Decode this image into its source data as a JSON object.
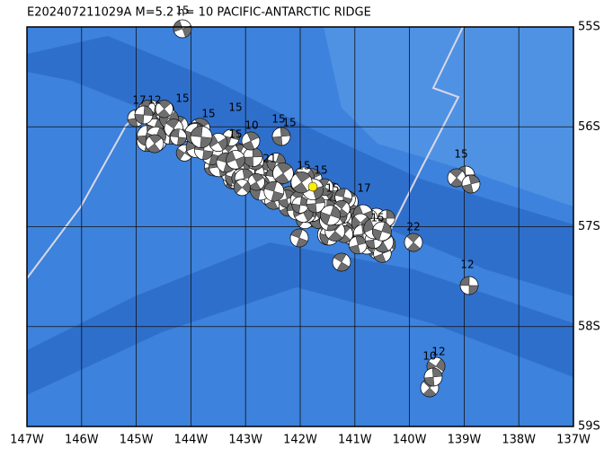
{
  "title": "E202407211029A M=5.2 h= 10 PACIFIC-ANTARCTIC RIDGE",
  "lon_labels": [
    "147W",
    "146W",
    "145W",
    "144W",
    "143W",
    "142W",
    "141W",
    "140W",
    "139W",
    "138W",
    "137W"
  ],
  "lat_labels": [
    "55S",
    "56S",
    "57S",
    "58S",
    "59S"
  ],
  "events": [
    "15",
    "17",
    "12",
    "15",
    "15",
    "15",
    "10",
    "15",
    "15",
    "15",
    "15",
    "17",
    "22",
    "12",
    "15",
    "12",
    "10",
    "15",
    "21",
    "15",
    "15"
  ]
}
